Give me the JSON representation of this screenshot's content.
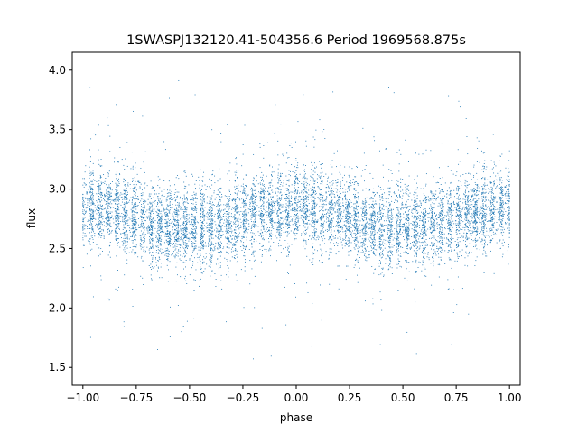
{
  "chart_data": {
    "type": "scatter",
    "title": "1SWASPJ132120.41-504356.6 Period 1969568.875s",
    "xlabel": "phase",
    "ylabel": "flux",
    "xlim": [
      -1.05,
      1.05
    ],
    "ylim": [
      1.35,
      4.15
    ],
    "xticks": [
      -1.0,
      -0.75,
      -0.5,
      -0.25,
      0.0,
      0.25,
      0.5,
      0.75,
      1.0
    ],
    "xtick_labels": [
      "−1.00",
      "−0.75",
      "−0.50",
      "−0.25",
      "0.00",
      "0.25",
      "0.50",
      "0.75",
      "1.00"
    ],
    "yticks": [
      1.5,
      2.0,
      2.5,
      3.0,
      3.5,
      4.0
    ],
    "ytick_labels": [
      "1.5",
      "2.0",
      "2.5",
      "3.0",
      "3.5",
      "4.0"
    ],
    "grid": false,
    "legend": "none",
    "marker_color": "#1f77b4",
    "series": [
      {
        "x": [
          -1.0,
          -0.95,
          -0.9,
          -0.85,
          -0.8,
          -0.75,
          -0.7,
          -0.65,
          -0.6,
          -0.55,
          -0.5,
          -0.45,
          -0.4,
          -0.35,
          -0.3,
          -0.25,
          -0.2,
          -0.15,
          -0.1,
          -0.05,
          0.0,
          0.05,
          0.1,
          0.15,
          0.2,
          0.25,
          0.3,
          0.35,
          0.4,
          0.45,
          0.5,
          0.55,
          0.6,
          0.65,
          0.7,
          0.75,
          0.8,
          0.85,
          0.9,
          0.95,
          1.0
        ],
        "y": [
          2.85,
          2.86,
          2.84,
          2.82,
          2.8,
          2.76,
          2.72,
          2.68,
          2.66,
          2.68,
          2.7,
          2.7,
          2.69,
          2.7,
          2.73,
          2.76,
          2.8,
          2.82,
          2.83,
          2.84,
          2.85,
          2.86,
          2.84,
          2.82,
          2.8,
          2.76,
          2.72,
          2.68,
          2.66,
          2.68,
          2.7,
          2.7,
          2.69,
          2.7,
          2.73,
          2.76,
          2.8,
          2.82,
          2.83,
          2.84,
          2.85
        ]
      }
    ]
  }
}
